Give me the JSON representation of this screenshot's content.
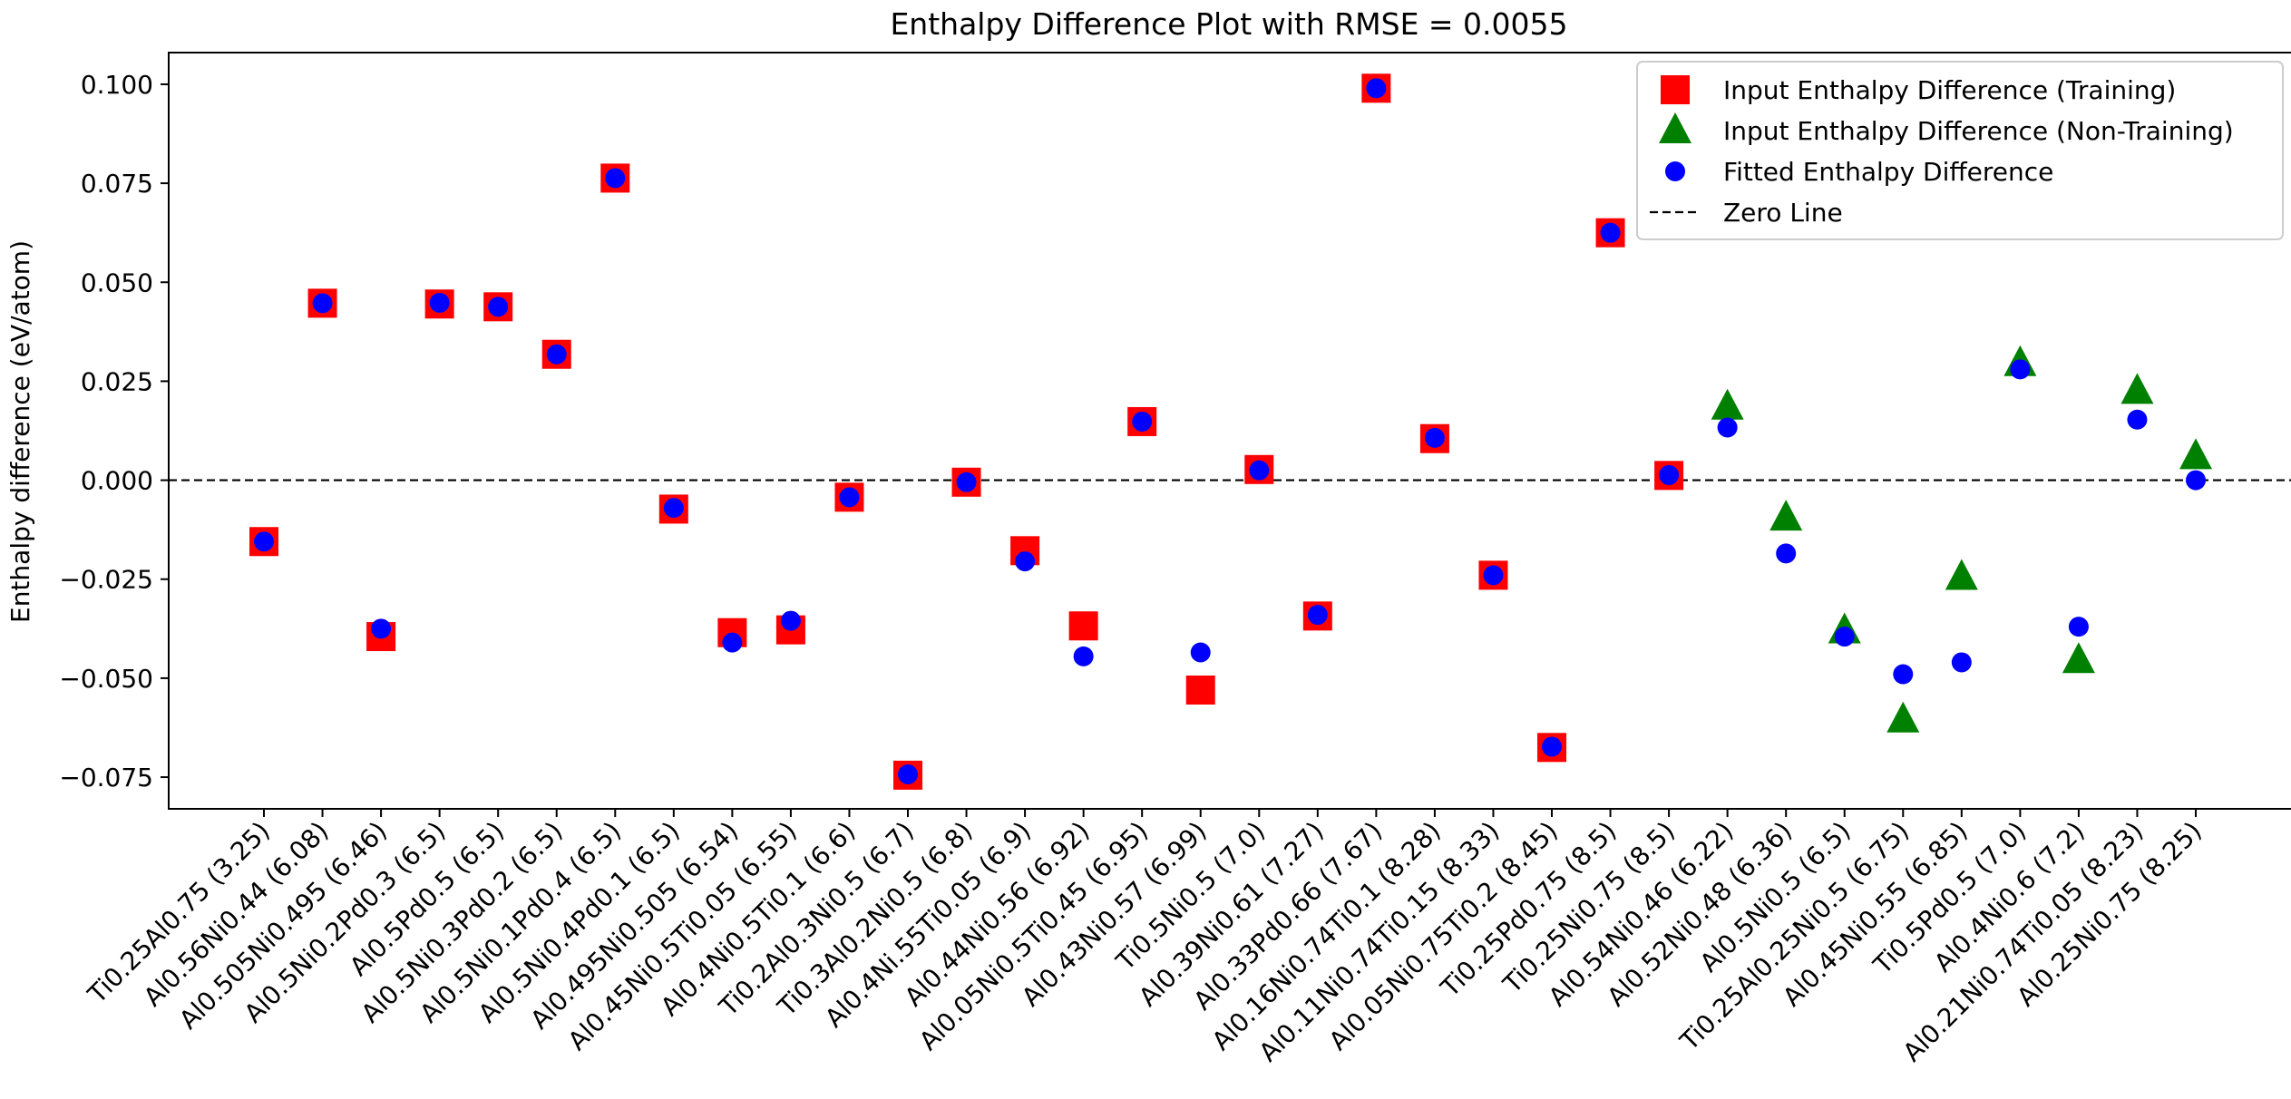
{
  "chart_data": {
    "type": "scatter",
    "title": "Enthalpy Difference Plot with RMSE = 0.0055",
    "xlabel": "",
    "ylabel": "Enthalpy difference (eV/atom)",
    "ylim": [
      -0.083,
      0.108
    ],
    "yticks": [
      -0.075,
      -0.05,
      -0.025,
      0.0,
      0.025,
      0.05,
      0.075,
      0.1
    ],
    "ytick_labels": [
      "−0.075",
      "−0.050",
      "−0.025",
      "0.000",
      "0.025",
      "0.050",
      "0.075",
      "0.100"
    ],
    "grid": false,
    "legend_position": "top-right",
    "categories": [
      "Ti0.25Al0.75 (3.25)",
      "Al0.56Ni0.44 (6.08)",
      "Al0.505Ni0.495 (6.46)",
      "Al0.5Ni0.2Pd0.3 (6.5)",
      "Al0.5Pd0.5 (6.5)",
      "Al0.5Ni0.3Pd0.2 (6.5)",
      "Al0.5Ni0.1Pd0.4 (6.5)",
      "Al0.5Ni0.4Pd0.1 (6.5)",
      "Al0.495Ni0.505 (6.54)",
      "Al0.45Ni0.5Ti0.05 (6.55)",
      "Al0.4Ni0.5Ti0.1 (6.6)",
      "Ti0.2Al0.3Ni0.5 (6.7)",
      "Ti0.3Al0.2Ni0.5 (6.8)",
      "Al0.4Ni.55Ti0.05 (6.9)",
      "Al0.44Ni0.56 (6.92)",
      "Al0.05Ni0.5Ti0.45 (6.95)",
      "Al0.43Ni0.57 (6.99)",
      "Ti0.5Ni0.5 (7.0)",
      "Al0.39Ni0.61 (7.27)",
      "Al0.33Pd0.66 (7.67)",
      "Al0.16Ni0.74Ti0.1 (8.28)",
      "Al0.11Ni0.74Ti0.15 (8.33)",
      "Al0.05Ni0.75Ti0.2 (8.45)",
      "Ti0.25Pd0.75 (8.5)",
      "Ti0.25Ni0.75 (8.5)",
      "Al0.54Ni0.46 (6.22)",
      "Al0.52Ni0.48 (6.36)",
      "Al0.5Ni0.5 (6.5)",
      "Ti0.25Al0.25Ni0.5 (6.75)",
      "Al0.45Ni0.55 (6.85)",
      "Ti0.5Pd0.5 (7.0)",
      "Al0.4Ni0.6 (7.2)",
      "Al0.21Ni0.74Ti0.05 (8.23)",
      "Al0.25Ni0.75 (8.25)"
    ],
    "series": [
      {
        "name": "Input Enthalpy Difference (Training)",
        "marker": "square",
        "color": "#ff0000",
        "values": [
          -0.0155,
          0.0447,
          -0.0395,
          0.0445,
          0.0438,
          0.0318,
          0.0763,
          -0.0073,
          -0.0385,
          -0.0378,
          -0.0043,
          -0.0745,
          -0.0005,
          -0.0178,
          -0.0368,
          0.0148,
          -0.053,
          0.0027,
          -0.0343,
          0.099,
          0.0105,
          -0.024,
          -0.0675,
          0.0625,
          0.0012,
          null,
          null,
          null,
          null,
          null,
          null,
          null,
          null,
          null
        ]
      },
      {
        "name": "Input Enthalpy Difference (Non-Training)",
        "marker": "triangle",
        "color": "#008000",
        "values": [
          null,
          null,
          null,
          null,
          null,
          null,
          null,
          null,
          null,
          null,
          null,
          null,
          null,
          null,
          null,
          null,
          null,
          null,
          null,
          null,
          null,
          null,
          null,
          null,
          null,
          0.0185,
          -0.0095,
          -0.038,
          -0.0605,
          -0.0245,
          0.0295,
          -0.0455,
          0.0225,
          0.006
        ]
      },
      {
        "name": "Fitted Enthalpy Difference",
        "marker": "circle",
        "color": "#0000ff",
        "values": [
          -0.0155,
          0.0447,
          -0.0375,
          0.0448,
          0.0438,
          0.0318,
          0.0763,
          -0.007,
          -0.041,
          -0.0355,
          -0.0043,
          -0.0743,
          -0.0005,
          -0.0205,
          -0.0445,
          0.0148,
          -0.0435,
          0.0025,
          -0.034,
          0.099,
          0.0107,
          -0.024,
          -0.0673,
          0.0625,
          0.0013,
          0.0133,
          -0.0185,
          -0.0395,
          -0.049,
          -0.046,
          0.028,
          -0.037,
          0.0153,
          0.0
        ]
      },
      {
        "name": "Zero Line",
        "marker": "dashed-line",
        "color": "#000000",
        "values": [
          0.0
        ]
      }
    ]
  }
}
